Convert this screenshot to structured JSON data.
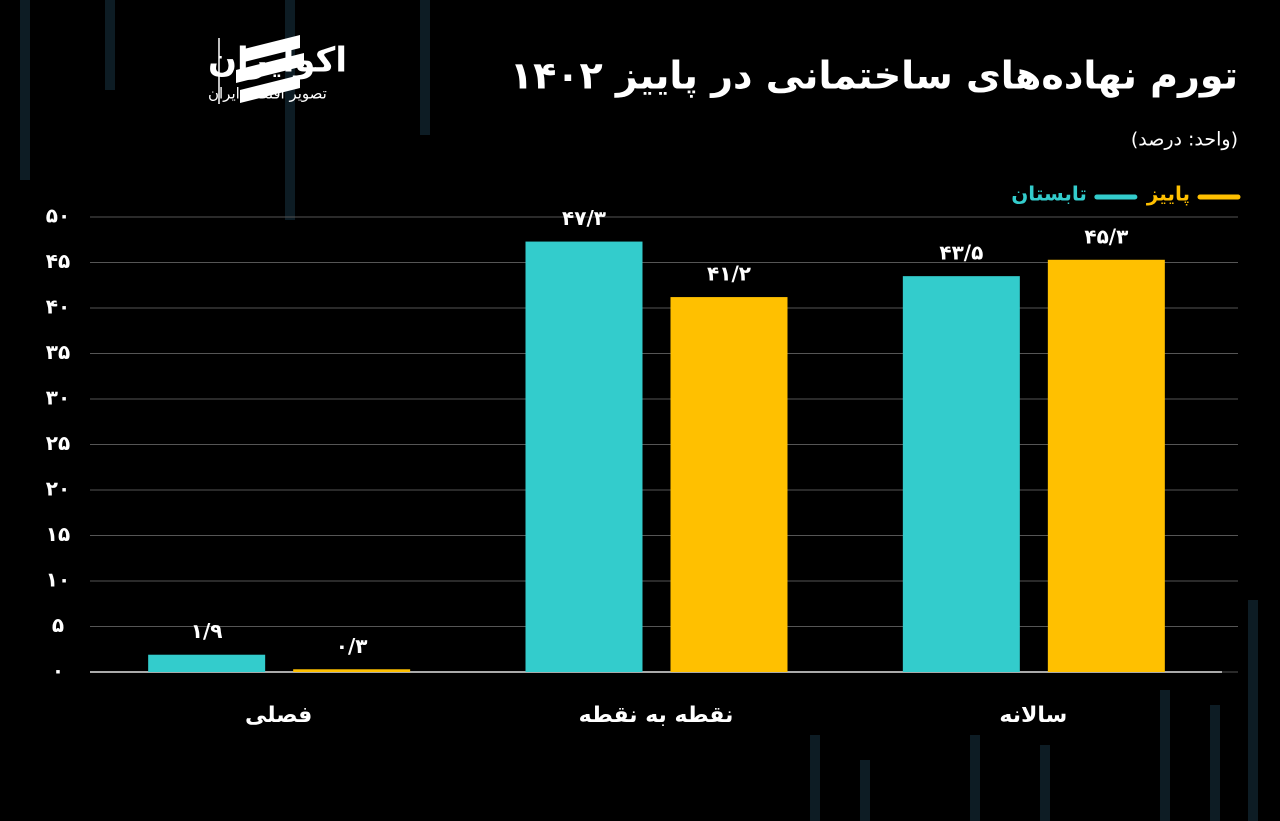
{
  "logo": {
    "name": "اکوایران",
    "tagline": "تصویر اقتصاد ایران"
  },
  "chart_data": {
    "type": "bar",
    "title": "تورم نهاده‌های ساختمانی در پاییز ۱۴۰۲",
    "subtitle": "(واحد: درصد)",
    "categories": [
      "فصلی",
      "نقطه به نقطه",
      "سالانه"
    ],
    "series": [
      {
        "name": "تابستان",
        "color": "#33cccc",
        "values": [
          1.9,
          47.3,
          43.5
        ],
        "value_labels": [
          "۱/۹",
          "۴۷/۳",
          "۴۳/۵"
        ]
      },
      {
        "name": "پاییز",
        "color": "#ffc000",
        "values": [
          0.3,
          41.2,
          45.3
        ],
        "value_labels": [
          "۰/۳",
          "۴۱/۲",
          "۴۵/۳"
        ]
      }
    ],
    "ylim": [
      0,
      50
    ],
    "yticks": [
      {
        "value": 0,
        "label": "۰"
      },
      {
        "value": 5,
        "label": "۵"
      },
      {
        "value": 10,
        "label": "۱۰"
      },
      {
        "value": 15,
        "label": "۱۵"
      },
      {
        "value": 20,
        "label": "۲۰"
      },
      {
        "value": 25,
        "label": "۲۵"
      },
      {
        "value": 30,
        "label": "۳۰"
      },
      {
        "value": 35,
        "label": "۳۵"
      },
      {
        "value": 40,
        "label": "۴۰"
      },
      {
        "value": 45,
        "label": "۴۵"
      },
      {
        "value": 50,
        "label": "۵۰"
      }
    ],
    "grid": true
  }
}
